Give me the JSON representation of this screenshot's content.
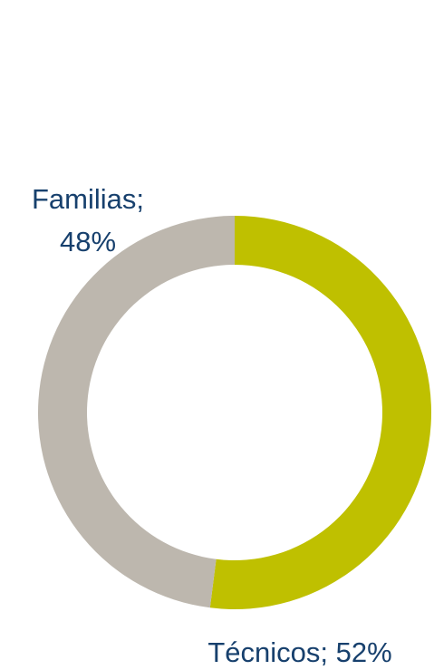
{
  "chart_data": {
    "type": "donut",
    "values": [
      52,
      48
    ],
    "value_labels": [
      "Técnicos; 52%",
      "Familias; 48%"
    ],
    "colors": [
      "#bfc000",
      "#bdb7ae"
    ]
  }
}
